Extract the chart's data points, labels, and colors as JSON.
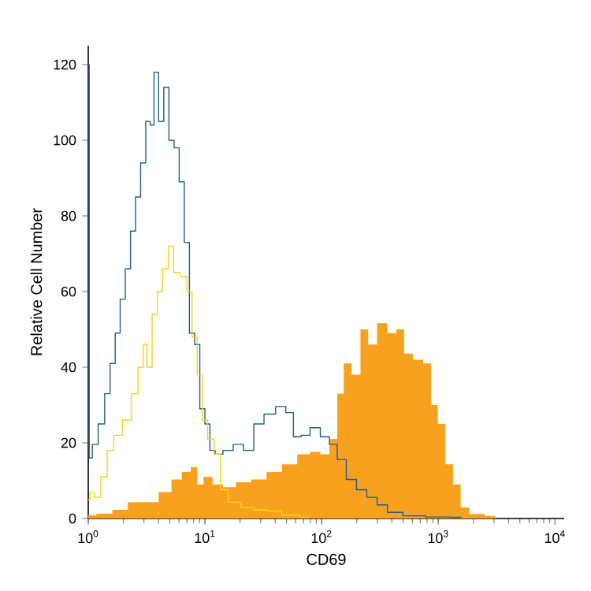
{
  "chart_data": {
    "type": "step",
    "xlabel": "CD69",
    "ylabel": "Relative Cell Number",
    "log": "x",
    "grid": false,
    "marker": "none",
    "xlim": [
      1,
      12000
    ],
    "ylim": [
      0,
      125
    ],
    "xticks": [
      {
        "value": 1,
        "label": "10$^{0}$"
      },
      {
        "value": 10,
        "label": "10$^{1}$"
      },
      {
        "value": 100,
        "label": "10$^{2}$"
      },
      {
        "value": 1000,
        "label": "10$^{3}$"
      },
      {
        "value": 10000,
        "label": "10$^{4}$"
      }
    ],
    "yticks": [
      0,
      20,
      40,
      60,
      80,
      100,
      120
    ],
    "series": [
      {
        "color": "#1f5f8b",
        "x": [
          1,
          1.04,
          1.13,
          1.31,
          1.46,
          1.62,
          1.79,
          1.97,
          2.19,
          2.42,
          2.67,
          2.96,
          3.27,
          3.52,
          3.81,
          4.22,
          4.67,
          5.17,
          5.72,
          6.33,
          7.0,
          7.75,
          8.6,
          9.5,
          10.5,
          11.6,
          12.9,
          15.8,
          19.3,
          23.7,
          29.0,
          35.5,
          45.9,
          53,
          62,
          72,
          88,
          108,
          126,
          147,
          180,
          220,
          270,
          331,
          405,
          609,
          1000,
          1580
        ],
        "values": [
          120,
          16,
          19.6,
          25,
          33,
          41,
          49,
          58,
          66,
          76,
          85,
          94,
          105,
          104,
          118,
          105,
          114,
          100,
          98,
          89,
          73,
          49,
          46,
          29,
          25,
          18,
          17,
          18,
          19.6,
          18,
          25,
          27.6,
          29.6,
          28,
          21.6,
          22,
          24,
          21.6,
          19.6,
          15.6,
          10.3,
          7.6,
          5.6,
          3.6,
          1.6,
          0.7,
          0.4,
          0.3
        ]
      },
      {
        "color": "#f5d21f",
        "x": [
          1,
          1.07,
          1.19,
          1.38,
          1.53,
          1.78,
          2.18,
          2.54,
          2.81,
          3.11,
          3.27,
          3.81,
          4.01,
          4.67,
          5.07,
          5.72,
          6.66,
          7.37,
          8.16,
          9.03,
          10.0,
          11.1,
          12.9,
          14.3,
          17.5,
          23.7,
          29.0,
          39.3,
          53,
          80
        ],
        "values": [
          5,
          7,
          5.6,
          11,
          18,
          22,
          26,
          33,
          40,
          46,
          40,
          54,
          60,
          66,
          72,
          65,
          64,
          60,
          48,
          38,
          26,
          21,
          17,
          7.6,
          4.3,
          2.9,
          2.3,
          2,
          0.9,
          0.4
        ]
      },
      {
        "type": "area",
        "color": "#f7a11e",
        "x": [
          1,
          1.38,
          1.88,
          2.54,
          3.45,
          4.67,
          5.72,
          7.0,
          8.16,
          9.03,
          10.5,
          12.9,
          15.8,
          21.4,
          29.0,
          39.3,
          53,
          72,
          88,
          108,
          126,
          147,
          163,
          199,
          233,
          270,
          331,
          405,
          471,
          552,
          673,
          823,
          912,
          1070,
          1240,
          1440,
          1680,
          2040,
          3070
        ],
        "values": [
          0.9,
          1.3,
          2.3,
          4.3,
          4.3,
          7,
          10.3,
          12.3,
          13.6,
          9,
          11,
          9,
          8.3,
          9.6,
          10.3,
          12.3,
          14.3,
          17,
          17.6,
          17,
          21,
          33,
          41,
          38,
          50,
          46,
          51.6,
          49,
          50,
          43.6,
          42,
          41,
          30,
          25,
          14.3,
          9,
          2.9,
          1.2,
          0.7
        ]
      }
    ]
  }
}
